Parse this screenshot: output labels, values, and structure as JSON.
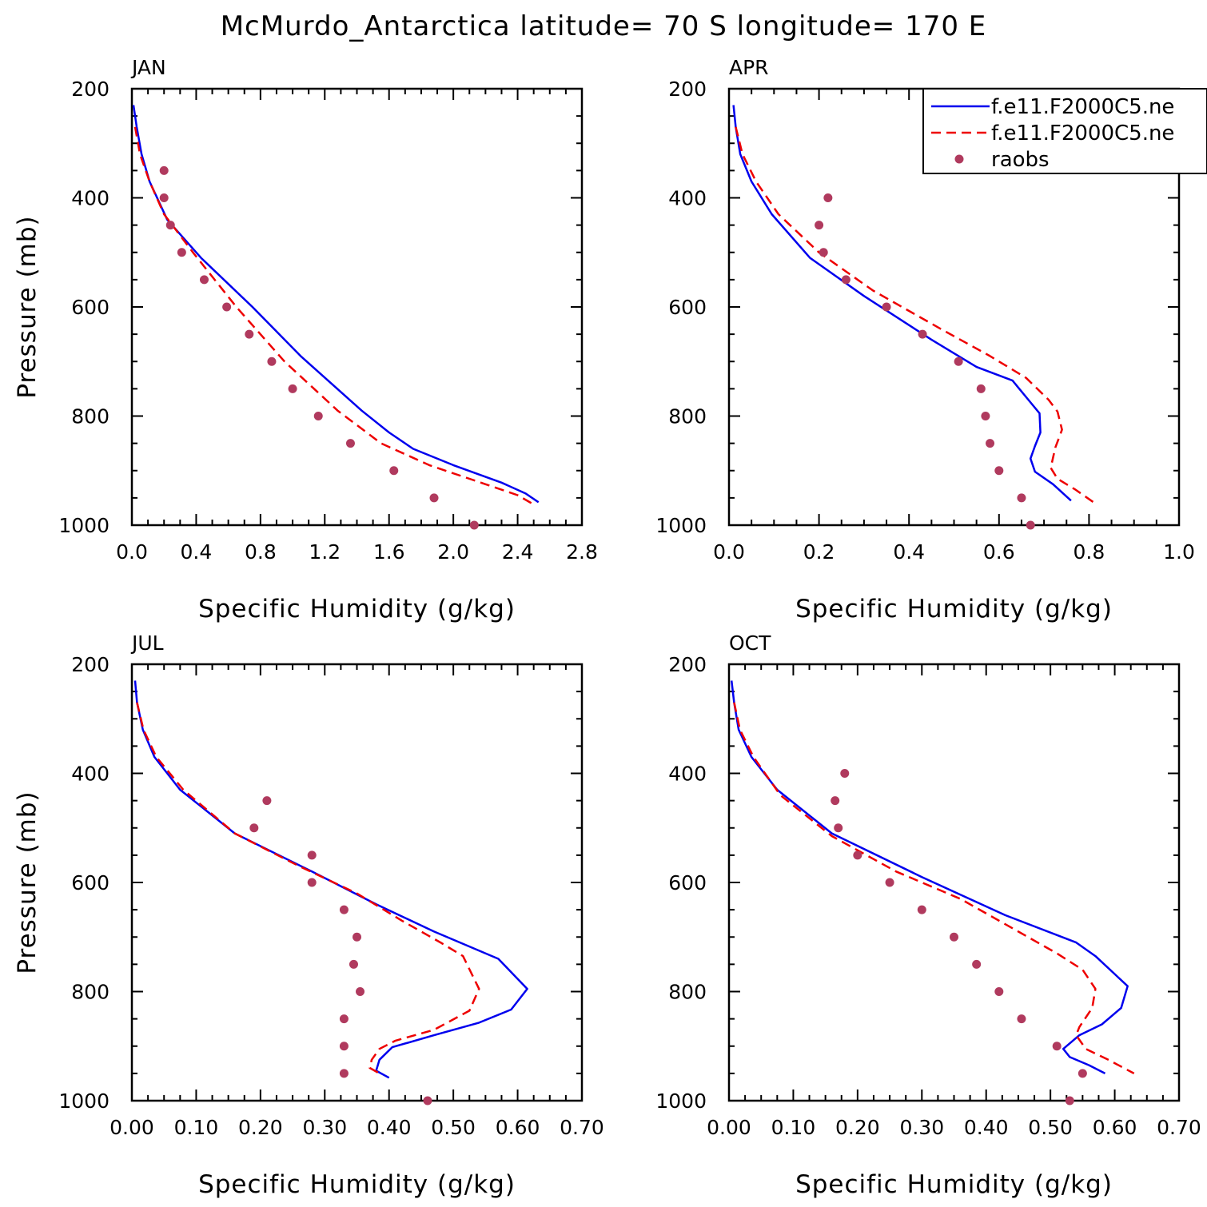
{
  "figure": {
    "title": "McMurdo_Antarctica  latitude= 70 S longitude= 170 E"
  },
  "legend": {
    "placement": "top-right of APR panel",
    "entries": [
      {
        "label": "f.e11.F2000C5.ne",
        "style": "solid",
        "color": "#0000ee"
      },
      {
        "label": "f.e11.F2000C5.ne",
        "style": "dashed",
        "color": "#ee0000"
      },
      {
        "label": "raobs",
        "style": "dots",
        "color": "#b03a5e"
      }
    ]
  },
  "colors": {
    "model_solid": "#0000ee",
    "model_dashed": "#ee0000",
    "raobs": "#b03a5e"
  },
  "chart_data": [
    {
      "type": "line",
      "panel": "JAN",
      "xlabel": "Specific Humidity (g/kg)",
      "ylabel": "Pressure (mb)",
      "xlim": [
        0,
        2.8
      ],
      "ylim": [
        1000,
        200
      ],
      "xticks": [
        0.0,
        0.4,
        0.8,
        1.2,
        1.6,
        2.0,
        2.4,
        2.8
      ],
      "xtick_labels": [
        "0.0",
        "0.4",
        "0.8",
        "1.2",
        "1.6",
        "2.0",
        "2.4",
        "2.8"
      ],
      "yticks": [
        200,
        400,
        600,
        800,
        1000
      ],
      "ytick_labels": [
        "200",
        "400",
        "600",
        "800",
        "1000"
      ],
      "series": [
        {
          "style": "solid",
          "color": "#0000ee",
          "points": [
            [
              0.01,
              230
            ],
            [
              0.03,
              270
            ],
            [
              0.06,
              320
            ],
            [
              0.11,
              370
            ],
            [
              0.22,
              440
            ],
            [
              0.43,
              510
            ],
            [
              0.75,
              600
            ],
            [
              1.05,
              690
            ],
            [
              1.43,
              790
            ],
            [
              1.6,
              830
            ],
            [
              1.75,
              860
            ],
            [
              2.0,
              890
            ],
            [
              2.3,
              922
            ],
            [
              2.45,
              942
            ],
            [
              2.53,
              958
            ]
          ]
        },
        {
          "style": "dashed",
          "color": "#ee0000",
          "points": [
            [
              0.02,
              270
            ],
            [
              0.05,
              320
            ],
            [
              0.11,
              370
            ],
            [
              0.2,
              430
            ],
            [
              0.38,
              500
            ],
            [
              0.65,
              600
            ],
            [
              0.95,
              700
            ],
            [
              1.28,
              790
            ],
            [
              1.55,
              850
            ],
            [
              1.85,
              890
            ],
            [
              2.2,
              925
            ],
            [
              2.4,
              945
            ],
            [
              2.5,
              962
            ]
          ]
        },
        {
          "style": "dots",
          "color": "#b03a5e",
          "points": [
            [
              0.2,
              350
            ],
            [
              0.2,
              400
            ],
            [
              0.24,
              450
            ],
            [
              0.31,
              500
            ],
            [
              0.45,
              550
            ],
            [
              0.59,
              600
            ],
            [
              0.73,
              650
            ],
            [
              0.87,
              700
            ],
            [
              1.0,
              750
            ],
            [
              1.16,
              800
            ],
            [
              1.36,
              850
            ],
            [
              1.63,
              900
            ],
            [
              1.88,
              950
            ],
            [
              2.13,
              1000
            ]
          ]
        }
      ]
    },
    {
      "type": "line",
      "panel": "APR",
      "xlabel": "Specific Humidity (g/kg)",
      "ylabel": "",
      "xlim": [
        0,
        1.0
      ],
      "ylim": [
        1000,
        200
      ],
      "xticks": [
        0.0,
        0.2,
        0.4,
        0.6,
        0.8,
        1.0
      ],
      "xtick_labels": [
        "0.0",
        "0.2",
        "0.4",
        "0.6",
        "0.8",
        "1.0"
      ],
      "yticks": [
        200,
        400,
        600,
        800,
        1000
      ],
      "ytick_labels": [
        "200",
        "400",
        "600",
        "800",
        "1000"
      ],
      "series": [
        {
          "style": "solid",
          "color": "#0000ee",
          "points": [
            [
              0.01,
              230
            ],
            [
              0.015,
              270
            ],
            [
              0.025,
              320
            ],
            [
              0.05,
              370
            ],
            [
              0.095,
              430
            ],
            [
              0.18,
              510
            ],
            [
              0.3,
              580
            ],
            [
              0.45,
              660
            ],
            [
              0.55,
              710
            ],
            [
              0.63,
              735
            ],
            [
              0.665,
              770
            ],
            [
              0.69,
              795
            ],
            [
              0.692,
              830
            ],
            [
              0.68,
              855
            ],
            [
              0.67,
              878
            ],
            [
              0.68,
              902
            ],
            [
              0.72,
              925
            ],
            [
              0.76,
              955
            ]
          ]
        },
        {
          "style": "dashed",
          "color": "#ee0000",
          "points": [
            [
              0.015,
              270
            ],
            [
              0.03,
              320
            ],
            [
              0.06,
              370
            ],
            [
              0.11,
              430
            ],
            [
              0.2,
              500
            ],
            [
              0.32,
              570
            ],
            [
              0.47,
              640
            ],
            [
              0.58,
              690
            ],
            [
              0.66,
              730
            ],
            [
              0.71,
              770
            ],
            [
              0.73,
              792
            ],
            [
              0.74,
              825
            ],
            [
              0.725,
              858
            ],
            [
              0.715,
              895
            ],
            [
              0.73,
              915
            ],
            [
              0.77,
              935
            ],
            [
              0.81,
              958
            ]
          ]
        },
        {
          "style": "dots",
          "color": "#b03a5e",
          "points": [
            [
              0.22,
              400
            ],
            [
              0.2,
              450
            ],
            [
              0.21,
              500
            ],
            [
              0.26,
              550
            ],
            [
              0.35,
              600
            ],
            [
              0.43,
              650
            ],
            [
              0.51,
              700
            ],
            [
              0.56,
              750
            ],
            [
              0.57,
              800
            ],
            [
              0.58,
              850
            ],
            [
              0.6,
              900
            ],
            [
              0.65,
              950
            ],
            [
              0.67,
              1000
            ]
          ]
        }
      ]
    },
    {
      "type": "line",
      "panel": "JUL",
      "xlabel": "Specific Humidity (g/kg)",
      "ylabel": "Pressure (mb)",
      "xlim": [
        0,
        0.7
      ],
      "ylim": [
        1000,
        200
      ],
      "xticks": [
        0.0,
        0.1,
        0.2,
        0.3,
        0.4,
        0.5,
        0.6,
        0.7
      ],
      "xtick_labels": [
        "0.00",
        "0.10",
        "0.20",
        "0.30",
        "0.40",
        "0.50",
        "0.60",
        "0.70"
      ],
      "yticks": [
        200,
        400,
        600,
        800,
        1000
      ],
      "ytick_labels": [
        "200",
        "400",
        "600",
        "800",
        "1000"
      ],
      "series": [
        {
          "style": "solid",
          "color": "#0000ee",
          "points": [
            [
              0.005,
              230
            ],
            [
              0.008,
              270
            ],
            [
              0.017,
              320
            ],
            [
              0.035,
              370
            ],
            [
              0.075,
              430
            ],
            [
              0.16,
              510
            ],
            [
              0.28,
              580
            ],
            [
              0.38,
              640
            ],
            [
              0.47,
              690
            ],
            [
              0.57,
              740
            ],
            [
              0.615,
              795
            ],
            [
              0.59,
              833
            ],
            [
              0.54,
              857
            ],
            [
              0.47,
              880
            ],
            [
              0.405,
              902
            ],
            [
              0.385,
              925
            ],
            [
              0.38,
              945
            ],
            [
              0.4,
              958
            ]
          ]
        },
        {
          "style": "dashed",
          "color": "#ee0000",
          "points": [
            [
              0.008,
              270
            ],
            [
              0.018,
              320
            ],
            [
              0.038,
              370
            ],
            [
              0.08,
              430
            ],
            [
              0.16,
              510
            ],
            [
              0.26,
              570
            ],
            [
              0.35,
              620
            ],
            [
              0.42,
              670
            ],
            [
              0.48,
              710
            ],
            [
              0.515,
              735
            ],
            [
              0.54,
              795
            ],
            [
              0.525,
              835
            ],
            [
              0.47,
              870
            ],
            [
              0.41,
              890
            ],
            [
              0.385,
              905
            ],
            [
              0.373,
              925
            ],
            [
              0.37,
              940
            ],
            [
              0.385,
              950
            ]
          ]
        },
        {
          "style": "dots",
          "color": "#b03a5e",
          "points": [
            [
              0.21,
              450
            ],
            [
              0.19,
              500
            ],
            [
              0.28,
              550
            ],
            [
              0.28,
              600
            ],
            [
              0.33,
              650
            ],
            [
              0.35,
              700
            ],
            [
              0.345,
              750
            ],
            [
              0.355,
              800
            ],
            [
              0.33,
              850
            ],
            [
              0.33,
              900
            ],
            [
              0.33,
              950
            ],
            [
              0.46,
              1000
            ]
          ]
        }
      ]
    },
    {
      "type": "line",
      "panel": "OCT",
      "xlabel": "Specific Humidity (g/kg)",
      "ylabel": "",
      "xlim": [
        0,
        0.7
      ],
      "ylim": [
        1000,
        200
      ],
      "xticks": [
        0.0,
        0.1,
        0.2,
        0.3,
        0.4,
        0.5,
        0.6,
        0.7
      ],
      "xtick_labels": [
        "0.00",
        "0.10",
        "0.20",
        "0.30",
        "0.40",
        "0.50",
        "0.60",
        "0.70"
      ],
      "yticks": [
        200,
        400,
        600,
        800,
        1000
      ],
      "ytick_labels": [
        "200",
        "400",
        "600",
        "800",
        "1000"
      ],
      "series": [
        {
          "style": "solid",
          "color": "#0000ee",
          "points": [
            [
              0.004,
              230
            ],
            [
              0.008,
              270
            ],
            [
              0.015,
              320
            ],
            [
              0.035,
              370
            ],
            [
              0.075,
              430
            ],
            [
              0.16,
              510
            ],
            [
              0.3,
              590
            ],
            [
              0.43,
              660
            ],
            [
              0.54,
              710
            ],
            [
              0.57,
              735
            ],
            [
              0.62,
              790
            ],
            [
              0.61,
              830
            ],
            [
              0.58,
              860
            ],
            [
              0.545,
              880
            ],
            [
              0.52,
              905
            ],
            [
              0.53,
              920
            ],
            [
              0.56,
              935
            ],
            [
              0.585,
              950
            ]
          ]
        },
        {
          "style": "dashed",
          "color": "#ee0000",
          "points": [
            [
              0.008,
              270
            ],
            [
              0.017,
              320
            ],
            [
              0.038,
              370
            ],
            [
              0.08,
              440
            ],
            [
              0.16,
              515
            ],
            [
              0.26,
              580
            ],
            [
              0.36,
              630
            ],
            [
              0.45,
              690
            ],
            [
              0.51,
              730
            ],
            [
              0.55,
              760
            ],
            [
              0.57,
              795
            ],
            [
              0.565,
              830
            ],
            [
              0.545,
              865
            ],
            [
              0.54,
              880
            ],
            [
              0.555,
              905
            ],
            [
              0.59,
              925
            ],
            [
              0.63,
              950
            ]
          ]
        },
        {
          "style": "dots",
          "color": "#b03a5e",
          "points": [
            [
              0.18,
              400
            ],
            [
              0.165,
              450
            ],
            [
              0.17,
              500
            ],
            [
              0.2,
              550
            ],
            [
              0.25,
              600
            ],
            [
              0.3,
              650
            ],
            [
              0.35,
              700
            ],
            [
              0.385,
              750
            ],
            [
              0.42,
              800
            ],
            [
              0.455,
              850
            ],
            [
              0.51,
              900
            ],
            [
              0.55,
              950
            ],
            [
              0.53,
              1000
            ]
          ]
        }
      ]
    }
  ]
}
